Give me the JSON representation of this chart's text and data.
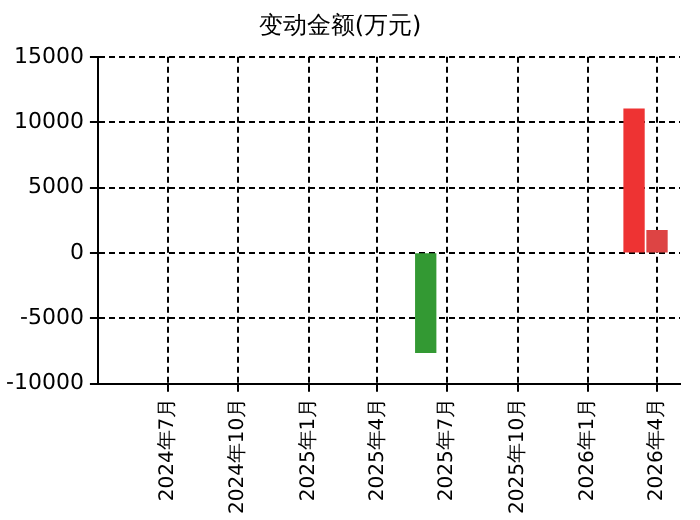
{
  "chart_data": {
    "type": "bar",
    "title": "变动金额(万元)",
    "x": [
      "2025-06-03",
      "2026-03-02",
      "2026-04-01"
    ],
    "values": [
      -7600,
      11000,
      1700
    ],
    "colors": [
      "#339933",
      "#ee3333",
      "#dd4444"
    ],
    "xlim": [
      "2024-04-01",
      "2026-05-01"
    ],
    "xticks": [
      {
        "value": "2024-07-01",
        "label": "2024年7月"
      },
      {
        "value": "2024-10-01",
        "label": "2024年10月"
      },
      {
        "value": "2025-01-01",
        "label": "2025年1月"
      },
      {
        "value": "2025-04-01",
        "label": "2025年4月"
      },
      {
        "value": "2025-07-01",
        "label": "2025年7月"
      },
      {
        "value": "2025-10-01",
        "label": "2025年10月"
      },
      {
        "value": "2026-01-01",
        "label": "2026年1月"
      },
      {
        "value": "2026-04-01",
        "label": "2026年4月"
      }
    ],
    "ylim": [
      -10000,
      15000
    ],
    "yticks": [
      -10000,
      -5000,
      0,
      5000,
      10000,
      15000
    ],
    "grid": true,
    "legend": false
  }
}
